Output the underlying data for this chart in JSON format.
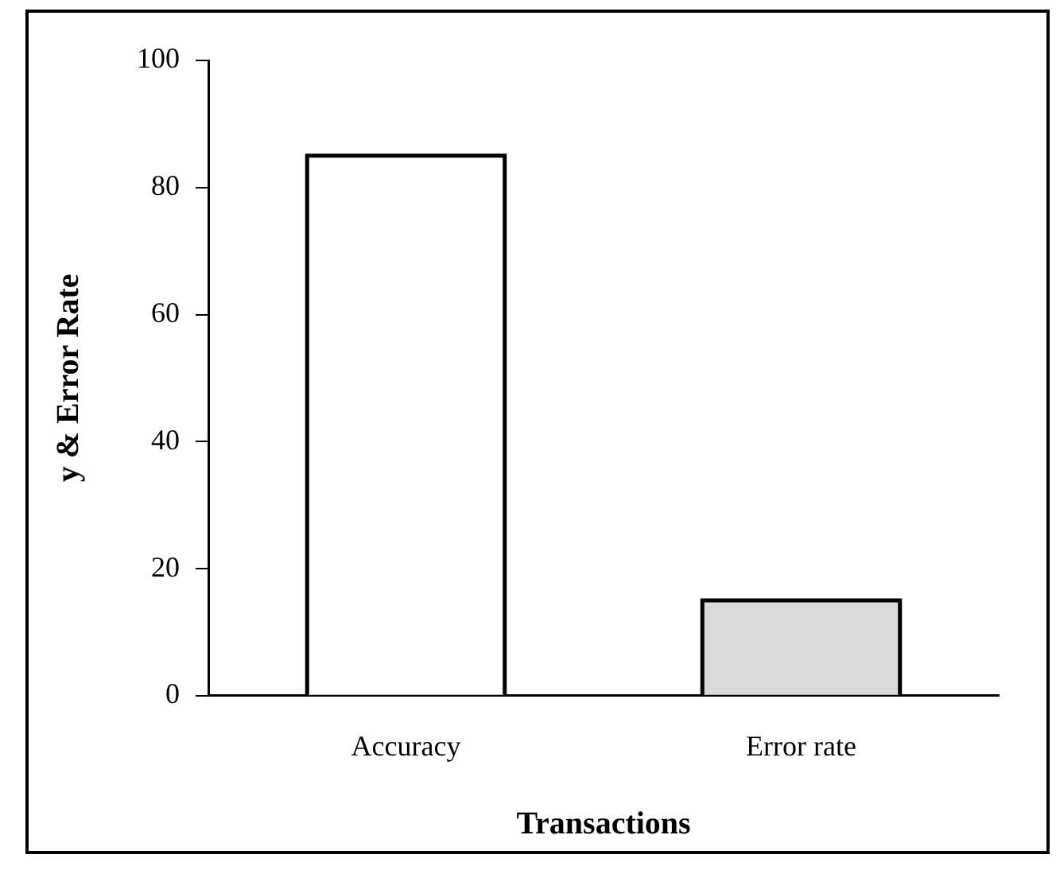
{
  "chart_data": {
    "type": "bar",
    "xlabel": "Transactions",
    "ylabel": "y & Error Rate",
    "categories": [
      "Accuracy",
      "Error rate"
    ],
    "values": [
      85,
      15
    ],
    "colors": [
      "#ffffff",
      "#d9d9d9"
    ],
    "ylim": [
      0,
      100
    ],
    "yticks": [
      0,
      20,
      40,
      60,
      80,
      100
    ],
    "grid": false,
    "legend": false
  }
}
